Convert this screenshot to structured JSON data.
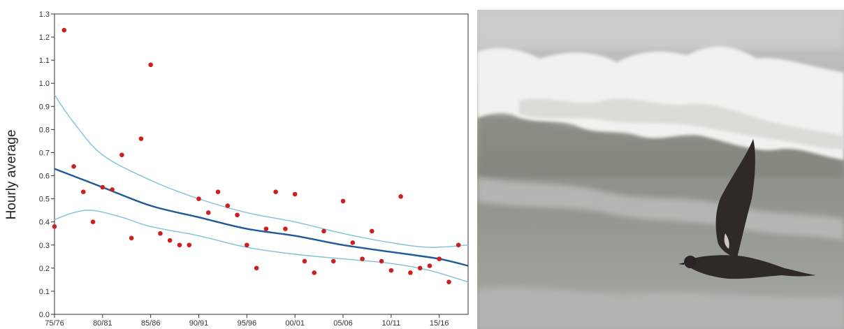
{
  "chart_data": {
    "type": "scatter",
    "ylabel": "Hourly average",
    "xlabel": "",
    "title": "",
    "x_tick_labels": [
      "75/76",
      "80/81",
      "85/86",
      "90/91",
      "95/96",
      "00/01",
      "05/06",
      "10/11",
      "15/16"
    ],
    "x_tick_years": [
      1975,
      1980,
      1985,
      1990,
      1995,
      2000,
      2005,
      2010,
      2015
    ],
    "xlim": [
      1975,
      2018
    ],
    "ylim": [
      0.0,
      1.3
    ],
    "y_ticks": [
      "0.0",
      "0.1",
      "0.2",
      "0.3",
      "0.4",
      "0.5",
      "0.6",
      "0.7",
      "0.8",
      "0.9",
      "1.0",
      "1.1",
      "1.2",
      "1.3"
    ],
    "grid": false,
    "series": [
      {
        "kind": "points",
        "color": "#cc1f1f",
        "x": [
          1975,
          1976,
          1977,
          1978,
          1979,
          1980,
          1981,
          1982,
          1983,
          1984,
          1985,
          1986,
          1987,
          1988,
          1989,
          1990,
          1991,
          1992,
          1993,
          1994,
          1995,
          1996,
          1997,
          1998,
          1999,
          2000,
          2001,
          2002,
          2003,
          2004,
          2005,
          2006,
          2007,
          2008,
          2009,
          2010,
          2011,
          2012,
          2013,
          2014,
          2015,
          2016,
          2017
        ],
        "y": [
          0.38,
          1.23,
          0.64,
          0.53,
          0.4,
          0.55,
          0.54,
          0.69,
          0.33,
          0.76,
          1.08,
          0.35,
          0.32,
          0.3,
          0.3,
          0.5,
          0.44,
          0.53,
          0.47,
          0.43,
          0.3,
          0.2,
          0.37,
          0.53,
          0.37,
          0.52,
          0.23,
          0.18,
          0.36,
          0.23,
          0.49,
          0.31,
          0.24,
          0.36,
          0.23,
          0.19,
          0.51,
          0.18,
          0.2,
          0.21,
          0.24,
          0.14,
          0.3
        ]
      },
      {
        "kind": "trend",
        "color": "#1f5a99",
        "x": [
          1975,
          1980,
          1985,
          1990,
          1995,
          2000,
          2005,
          2010,
          2015,
          2018
        ],
        "y": [
          0.63,
          0.55,
          0.47,
          0.42,
          0.37,
          0.34,
          0.3,
          0.27,
          0.24,
          0.21
        ]
      },
      {
        "kind": "upper-band",
        "color": "#7cc3d8",
        "x": [
          1975,
          1977,
          1980,
          1985,
          1990,
          1995,
          2000,
          2005,
          2010,
          2014,
          2018
        ],
        "y": [
          0.95,
          0.83,
          0.69,
          0.58,
          0.5,
          0.44,
          0.4,
          0.35,
          0.31,
          0.29,
          0.3
        ]
      },
      {
        "kind": "lower-band",
        "color": "#7cc3d8",
        "x": [
          1975,
          1977,
          1979,
          1982,
          1985,
          1990,
          1995,
          2000,
          2005,
          2010,
          2014,
          2018
        ],
        "y": [
          0.41,
          0.44,
          0.45,
          0.42,
          0.38,
          0.34,
          0.29,
          0.26,
          0.24,
          0.22,
          0.19,
          0.14
        ]
      }
    ]
  },
  "photo": {
    "sky_color": "#c9cccb",
    "sea_color": "#9c9e98",
    "foam_color": "#f1f1ee",
    "bird_color": "#2f2a26"
  }
}
